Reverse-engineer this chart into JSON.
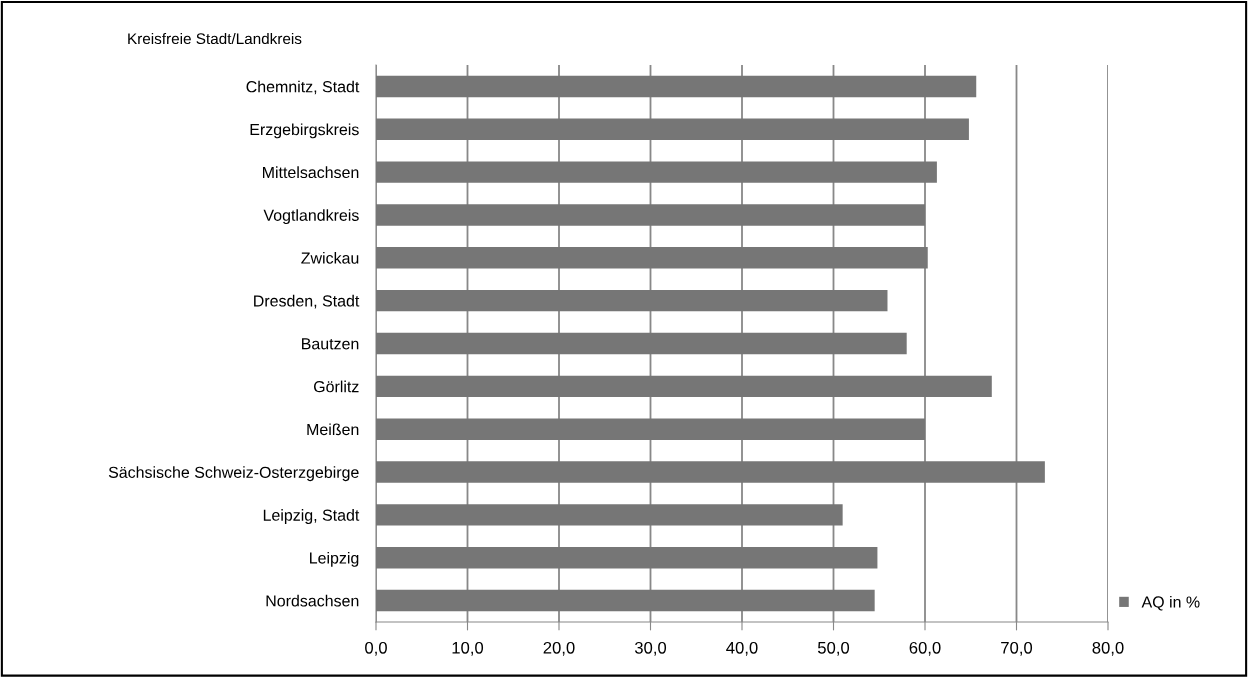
{
  "chart_data": {
    "type": "bar",
    "orientation": "horizontal",
    "ylabel": "Kreisfreie Stadt/Landkreis",
    "categories": [
      "Chemnitz, Stadt",
      "Erzgebirgskreis",
      "Mittelsachsen",
      "Vogtlandkreis",
      "Zwickau",
      "Dresden, Stadt",
      "Bautzen",
      "Görlitz",
      "Meißen",
      "Sächsische Schweiz-Osterzgebirge",
      "Leipzig, Stadt",
      "Leipzig",
      "Nordsachsen"
    ],
    "series": [
      {
        "name": "AQ in %",
        "color": "#767676",
        "values": [
          65.6,
          64.8,
          61.3,
          60.0,
          60.3,
          55.9,
          58.0,
          67.3,
          60.0,
          73.1,
          51.0,
          54.8,
          54.5
        ]
      }
    ],
    "xlim": [
      0,
      80
    ],
    "xticks": [
      {
        "value": 0,
        "label": "0,0"
      },
      {
        "value": 10,
        "label": "10,0"
      },
      {
        "value": 20,
        "label": "20,0"
      },
      {
        "value": 30,
        "label": "30,0"
      },
      {
        "value": 40,
        "label": "40,0"
      },
      {
        "value": 50,
        "label": "50,0"
      },
      {
        "value": 60,
        "label": "60,0"
      },
      {
        "value": 70,
        "label": "70,0"
      },
      {
        "value": 80,
        "label": "80,0"
      }
    ],
    "grid": "x",
    "legend": "bottom right"
  }
}
